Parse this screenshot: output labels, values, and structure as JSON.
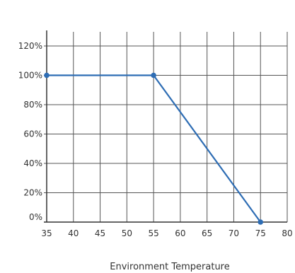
{
  "chart_data": {
    "type": "line",
    "title": "",
    "xlabel": "Environment Temperature",
    "ylabel": "",
    "x_ticks": [
      35,
      40,
      45,
      50,
      55,
      60,
      65,
      70,
      75,
      80
    ],
    "y_ticks": [
      "0%",
      "20%",
      "40%",
      "60%",
      "80%",
      "100%",
      "120%"
    ],
    "y_tick_values": [
      0,
      20,
      40,
      60,
      80,
      100,
      120
    ],
    "xlim": [
      35,
      80
    ],
    "ylim": [
      0,
      120
    ],
    "grid": true,
    "legend": "none",
    "series": [
      {
        "x": [
          35,
          55,
          75
        ],
        "y": [
          100,
          100,
          0
        ],
        "color": "#2e6db4"
      }
    ]
  }
}
